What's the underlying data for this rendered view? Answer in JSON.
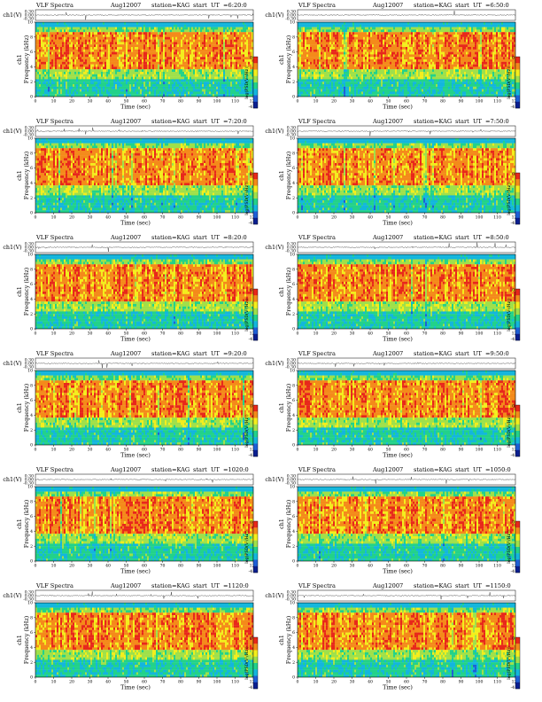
{
  "figure": {
    "title_prefix": "VLF Spectra",
    "date": "Aug12007",
    "station": "station=KAG",
    "start_label": "start",
    "ut_label": "UT",
    "waveform_ylabel": "ch1(V)",
    "channel_label": "ch1",
    "spectrogram_ylabel": "Frequency (kHz)",
    "xlabel": "Time (sec)",
    "colorbar_label": "log(PSD(V²/Hz))"
  },
  "chart_data": [
    {
      "type": "heatmap",
      "start_time": "=6:20:0",
      "xlim": [
        0,
        120
      ],
      "ylim": [
        0,
        10
      ],
      "waveform_ylim": [
        -0.3,
        0.3
      ]
    },
    {
      "type": "heatmap",
      "start_time": "=6:50:0",
      "xlim": [
        0,
        120
      ],
      "ylim": [
        0,
        10
      ],
      "waveform_ylim": [
        -0.3,
        0.3
      ]
    },
    {
      "type": "heatmap",
      "start_time": "=7:20:0",
      "xlim": [
        0,
        120
      ],
      "ylim": [
        0,
        10
      ],
      "waveform_ylim": [
        -0.3,
        0.3
      ]
    },
    {
      "type": "heatmap",
      "start_time": "=7:50:0",
      "xlim": [
        0,
        120
      ],
      "ylim": [
        0,
        10
      ],
      "waveform_ylim": [
        -0.3,
        0.3
      ]
    },
    {
      "type": "heatmap",
      "start_time": "=8:20:0",
      "xlim": [
        0,
        120
      ],
      "ylim": [
        0,
        10
      ],
      "waveform_ylim": [
        -0.3,
        0.3
      ]
    },
    {
      "type": "heatmap",
      "start_time": "=8:50:0",
      "xlim": [
        0,
        120
      ],
      "ylim": [
        0,
        10
      ],
      "waveform_ylim": [
        -0.3,
        0.3
      ]
    },
    {
      "type": "heatmap",
      "start_time": "=9:20:0",
      "xlim": [
        0,
        120
      ],
      "ylim": [
        0,
        10
      ],
      "waveform_ylim": [
        -0.3,
        0.3
      ]
    },
    {
      "type": "heatmap",
      "start_time": "=9:50:0",
      "xlim": [
        0,
        120
      ],
      "ylim": [
        0,
        10
      ],
      "waveform_ylim": [
        -0.3,
        0.3
      ]
    },
    {
      "type": "heatmap",
      "start_time": "=1020:0",
      "xlim": [
        0,
        120
      ],
      "ylim": [
        0,
        10
      ],
      "waveform_ylim": [
        -0.3,
        0.3
      ]
    },
    {
      "type": "heatmap",
      "start_time": "=1050:0",
      "xlim": [
        0,
        120
      ],
      "ylim": [
        0,
        10
      ],
      "waveform_ylim": [
        -0.3,
        0.3
      ]
    },
    {
      "type": "heatmap",
      "start_time": "=1120:0",
      "xlim": [
        0,
        120
      ],
      "ylim": [
        0,
        10
      ],
      "waveform_ylim": [
        -0.3,
        0.3
      ]
    },
    {
      "type": "heatmap",
      "start_time": "=1150:0",
      "xlim": [
        0,
        120
      ],
      "ylim": [
        0,
        10
      ],
      "waveform_ylim": [
        -0.3,
        0.3
      ]
    }
  ],
  "axes": {
    "x_ticks": [
      0,
      10,
      20,
      30,
      40,
      50,
      60,
      70,
      80,
      90,
      100,
      110,
      120
    ],
    "freq_ticks": [
      0,
      2,
      4,
      6,
      8,
      10
    ],
    "waveform_ticks": [
      "0.30",
      "0.00",
      "-0.30"
    ],
    "colorbar_ticks": [
      "0",
      "-4"
    ]
  },
  "colors": {
    "colormap": [
      "#0b1f8f",
      "#1f5fd6",
      "#13b6dd",
      "#22d28a",
      "#9fe04a",
      "#f3ee1c",
      "#f48a1a",
      "#e8281b"
    ]
  }
}
